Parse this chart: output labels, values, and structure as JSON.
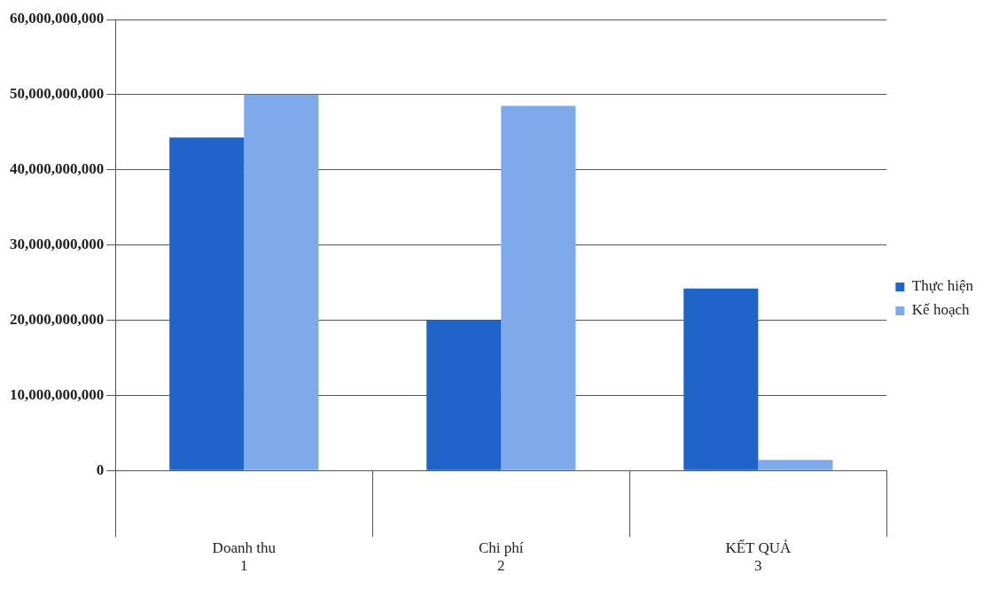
{
  "chart_data": {
    "type": "bar",
    "categories": [
      "Doanh thu\n1",
      "Chi phí\n2",
      "KẾT QUẢ\n3"
    ],
    "series": [
      {
        "name": "Thực hiện",
        "color": "#1f64c8",
        "values": [
          44300000000,
          20000000000,
          24200000000
        ]
      },
      {
        "name": "Kế hoạch",
        "color": "#7eaaeb",
        "values": [
          50000000000,
          48500000000,
          1400000000
        ]
      }
    ],
    "ylim": [
      0,
      60000000000
    ],
    "yticks": [
      0,
      {
        "value": 10000000000,
        "label": "10,000,000,000"
      },
      {
        "value": 20000000000,
        "label": "20,000,000,000"
      },
      {
        "value": 30000000000,
        "label": "30,000,000,000"
      },
      {
        "value": 40000000000,
        "label": "40,000,000,000"
      },
      {
        "value": 50000000000,
        "label": "50,000,000,000"
      },
      {
        "value": 60000000000,
        "label": "60,000,000,000"
      }
    ],
    "grid": "y",
    "legend": "right"
  }
}
